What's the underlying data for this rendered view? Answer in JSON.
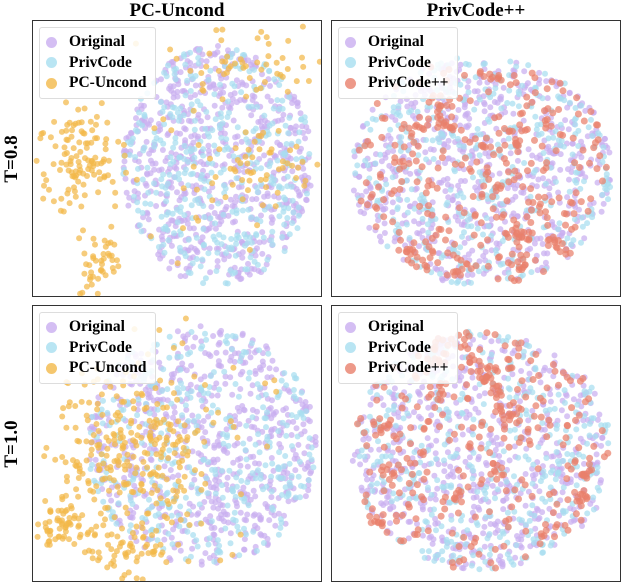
{
  "chart_data": {
    "type": "scatter",
    "columns": [
      "PC-Uncond",
      "PrivCode++"
    ],
    "rows": [
      "T=0.8",
      "T=1.0"
    ],
    "colors": {
      "Original": "#c9aef0",
      "PrivCode": "#a8def0",
      "PC-Uncond": "#f2b94a",
      "PrivCode++": "#e9806b"
    },
    "panels": [
      {
        "row": "T=0.8",
        "col": "PC-Uncond",
        "series": [
          "Original",
          "PrivCode",
          "PC-Uncond"
        ]
      },
      {
        "row": "T=0.8",
        "col": "PrivCode++",
        "series": [
          "Original",
          "PrivCode",
          "PrivCode++"
        ]
      },
      {
        "row": "T=1.0",
        "col": "PC-Uncond",
        "series": [
          "Original",
          "PrivCode",
          "PC-Uncond"
        ]
      },
      {
        "row": "T=1.0",
        "col": "PrivCode++",
        "series": [
          "Original",
          "PrivCode",
          "PrivCode++"
        ]
      }
    ],
    "grid": false,
    "legend_position": "top-left"
  }
}
